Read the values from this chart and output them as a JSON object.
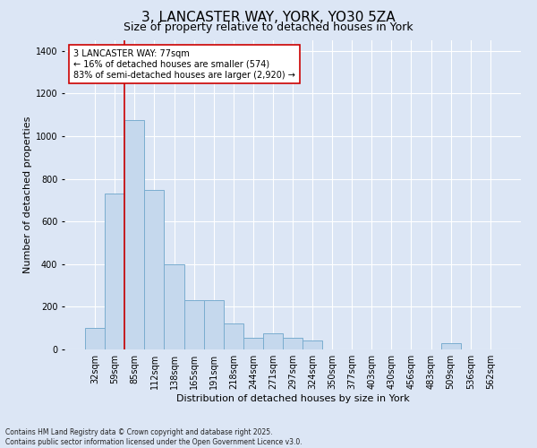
{
  "title_line1": "3, LANCASTER WAY, YORK, YO30 5ZA",
  "title_line2": "Size of property relative to detached houses in York",
  "xlabel": "Distribution of detached houses by size in York",
  "ylabel": "Number of detached properties",
  "bar_categories": [
    "32sqm",
    "59sqm",
    "85sqm",
    "112sqm",
    "138sqm",
    "165sqm",
    "191sqm",
    "218sqm",
    "244sqm",
    "271sqm",
    "297sqm",
    "324sqm",
    "350sqm",
    "377sqm",
    "403sqm",
    "430sqm",
    "456sqm",
    "483sqm",
    "509sqm",
    "536sqm",
    "562sqm"
  ],
  "bar_values": [
    100,
    730,
    1075,
    750,
    400,
    230,
    230,
    120,
    55,
    75,
    55,
    40,
    0,
    0,
    0,
    0,
    0,
    0,
    30,
    0,
    0
  ],
  "bar_color": "#c5d8ed",
  "bar_edgecolor": "#7aadcf",
  "vline_x_pos": 1.5,
  "vline_color": "#cc0000",
  "annotation_text": "3 LANCASTER WAY: 77sqm\n← 16% of detached houses are smaller (574)\n83% of semi-detached houses are larger (2,920) →",
  "annotation_box_color": "#ffffff",
  "annotation_box_edgecolor": "#cc0000",
  "ylim": [
    0,
    1450
  ],
  "fig_background_color": "#dce6f5",
  "plot_background": "#dce6f5",
  "footer_line1": "Contains HM Land Registry data © Crown copyright and database right 2025.",
  "footer_line2": "Contains public sector information licensed under the Open Government Licence v3.0.",
  "title_fontsize": 11,
  "subtitle_fontsize": 9,
  "tick_fontsize": 7,
  "ylabel_fontsize": 8,
  "xlabel_fontsize": 8,
  "annotation_fontsize": 7,
  "footer_fontsize": 5.5
}
